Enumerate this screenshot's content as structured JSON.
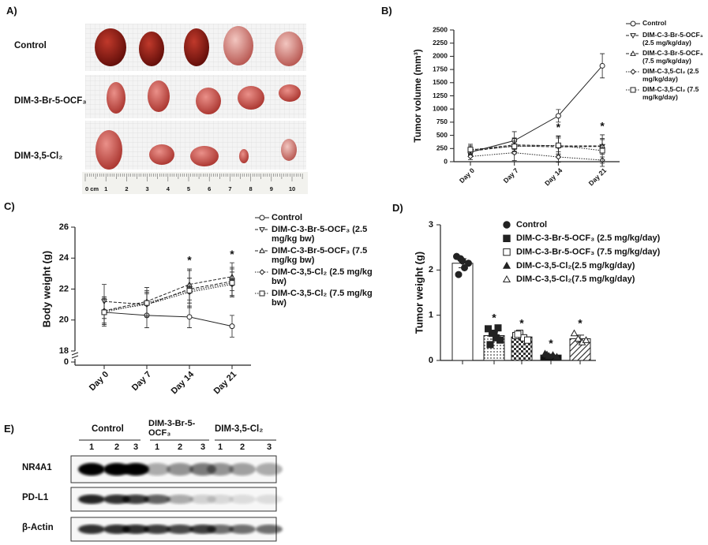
{
  "panel_labels": [
    "A)",
    "B)",
    "C)",
    "D)",
    "E)"
  ],
  "photo_panel": {
    "row_labels": [
      "Control",
      "DIM-3-Br-5-OCF₃",
      "DIM-3,5-Cl₂"
    ],
    "ruler_labels": [
      "0 cm",
      "1",
      "2",
      "3",
      "4",
      "5",
      "6",
      "7",
      "8",
      "9",
      "10"
    ]
  },
  "chart_data": [
    {
      "type": "line",
      "ylabel": "Tumor volume (mm³)",
      "categories": [
        "Day 0",
        "Day 7",
        "Day 14",
        "Day 21"
      ],
      "ylim": [
        0,
        2500
      ],
      "yticks": [
        0,
        250,
        500,
        750,
        1000,
        1250,
        1500,
        1750,
        2000,
        2250,
        2500
      ],
      "legend": "right",
      "series": [
        {
          "name": "Control",
          "color": "#222222",
          "line_style": "solid",
          "marker": "circle",
          "values": [
            180,
            400,
            870,
            1820
          ],
          "errors": [
            60,
            170,
            120,
            230
          ]
        },
        {
          "name": "DIM-C-3-Br-5-OCF₃ (2.5 mg/kg/day)",
          "color": "#222222",
          "line_style": "dashed",
          "marker": "triangle-down",
          "values": [
            200,
            300,
            280,
            290
          ],
          "errors": [
            100,
            150,
            200,
            150
          ]
        },
        {
          "name": "DIM-C-3-Br-5-OCF₃ (7.5 mg/kg/day)",
          "color": "#222222",
          "line_style": "dashed",
          "marker": "triangle-up",
          "values": [
            220,
            320,
            300,
            300
          ],
          "errors": [
            80,
            120,
            150,
            120
          ]
        },
        {
          "name": "DIM-C-3,5-Cl₂ (2.5 mg/kg/day)",
          "color": "#222222",
          "line_style": "dotted",
          "marker": "diamond",
          "values": [
            100,
            170,
            90,
            30
          ],
          "errors": [
            60,
            150,
            100,
            60
          ]
        },
        {
          "name": "DIM-C-3,5-Cl₂ (7.5 mg/kg/day)",
          "color": "#222222",
          "line_style": "dotted",
          "marker": "square",
          "values": [
            230,
            290,
            310,
            210
          ],
          "errors": [
            100,
            100,
            180,
            300
          ]
        }
      ],
      "annotations": [
        {
          "text": "*",
          "category": "Day 14"
        },
        {
          "text": "*",
          "category": "Day 21"
        }
      ]
    },
    {
      "type": "line",
      "ylabel": "Body weight (g)",
      "categories": [
        "Day 0",
        "Day 7",
        "Day 14",
        "Day 21"
      ],
      "ylim": [
        18,
        26
      ],
      "yticks": [
        18,
        20,
        22,
        24,
        26
      ],
      "axis_break_label": "0",
      "legend": "right",
      "series": [
        {
          "name": "Control",
          "color": "#222222",
          "line_style": "solid",
          "marker": "circle",
          "values": [
            20.5,
            20.3,
            20.2,
            19.6
          ],
          "errors": [
            0.8,
            0.8,
            0.7,
            0.7
          ]
        },
        {
          "name": "DIM-C-3-Br-5-OCF₃ (2.5 mg/kg bw)",
          "color": "#222222",
          "line_style": "dashed",
          "marker": "triangle-down",
          "values": [
            21.2,
            21.0,
            22.0,
            22.5
          ],
          "errors": [
            1.1,
            0.8,
            1.2,
            0.9
          ]
        },
        {
          "name": "DIM-C-3-Br-5-OCF₃ (7.5 mg/kg bw)",
          "color": "#222222",
          "line_style": "dashed",
          "marker": "triangle-up",
          "values": [
            20.6,
            21.2,
            22.3,
            22.8
          ],
          "errors": [
            0.9,
            0.9,
            1.0,
            0.9
          ]
        },
        {
          "name": "DIM-C-3,5-Cl₂ (2.5 mg/kg bw)",
          "color": "#222222",
          "line_style": "dotted",
          "marker": "diamond",
          "values": [
            20.6,
            21.0,
            21.8,
            22.3
          ],
          "errors": [
            0.8,
            0.7,
            0.9,
            0.8
          ]
        },
        {
          "name": "DIM-C-3,5-Cl₂ (7.5 mg/kg bw)",
          "color": "#222222",
          "line_style": "dotted",
          "marker": "square",
          "values": [
            20.5,
            21.1,
            21.9,
            22.4
          ],
          "errors": [
            0.9,
            0.8,
            0.8,
            0.9
          ]
        }
      ],
      "annotations": [
        {
          "text": "*",
          "category": "Day 14"
        },
        {
          "text": "*",
          "category": "Day 21"
        }
      ]
    },
    {
      "type": "dotbar",
      "ylabel": "Tumor weight (g)",
      "categories": [
        null,
        null,
        null,
        null,
        null
      ],
      "ylim": [
        0,
        3
      ],
      "yticks": [
        0,
        1,
        2,
        3
      ],
      "series": [
        {
          "name": "Control",
          "marker": "circle-filled",
          "fill_pattern": "white",
          "value": 2.15,
          "error": 0.1,
          "points": [
            2.3,
            2.25,
            2.05,
            2.15,
            1.9,
            2.2
          ]
        },
        {
          "name": "DIM-C-3-Br-5-OCF₃ (2.5 mg/kg/day)",
          "marker": "square-filled",
          "fill_pattern": "dots",
          "value": 0.55,
          "error": 0.08,
          "points": [
            0.7,
            0.6,
            0.5,
            0.45,
            0.35,
            0.6,
            0.72
          ],
          "significance": "*"
        },
        {
          "name": "DIM-C-3-Br-5-OCF₃ (7.5 mg/kg/day)",
          "marker": "square-open",
          "fill_pattern": "checker",
          "value": 0.52,
          "error": 0.05,
          "points": [
            0.55,
            0.6,
            0.5,
            0.45,
            0.58
          ],
          "significance": "*"
        },
        {
          "name": "DIM-C-3,5-Cl₂(2.5 mg/kg/day)",
          "marker": "triangle-filled",
          "fill_pattern": "black",
          "value": 0.12,
          "error": 0.02,
          "points": [
            0.15,
            0.1,
            0.12,
            0.08,
            0.13
          ],
          "significance": "*"
        },
        {
          "name": "DIM-C-3,5-Cl₂(7.5 mg/kg/day)",
          "marker": "triangle-open",
          "fill_pattern": "hatch",
          "value": 0.48,
          "error": 0.08,
          "points": [
            0.6,
            0.48,
            0.4,
            0.45
          ],
          "significance": "*"
        }
      ]
    }
  ],
  "blot_panel": {
    "group_labels": [
      "Control",
      "DIM-3-Br-5-OCF₃",
      "DIM-3,5-Cl₂"
    ],
    "lane_labels": [
      [
        "1",
        "2",
        "3"
      ],
      [
        "1",
        "2",
        "3"
      ],
      [
        "1",
        "2",
        "3"
      ]
    ],
    "row_labels": [
      "NR4A1",
      "PD-L1",
      "β-Actin"
    ]
  }
}
